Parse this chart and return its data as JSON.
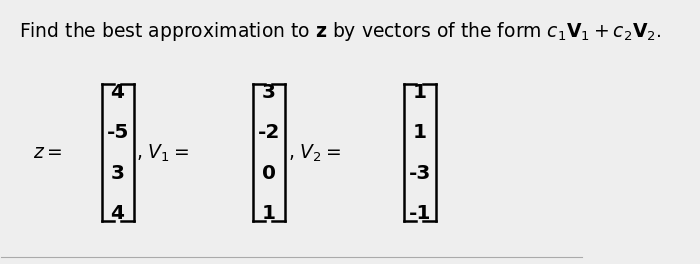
{
  "background_color": "#eeeeee",
  "z_values": [
    "4",
    "-5",
    "3",
    "4"
  ],
  "v1_values": [
    "3",
    "-2",
    "0",
    "1"
  ],
  "v2_values": [
    "1",
    "1",
    "-3",
    "-1"
  ],
  "font_size": 14,
  "title_font_size": 13.5
}
